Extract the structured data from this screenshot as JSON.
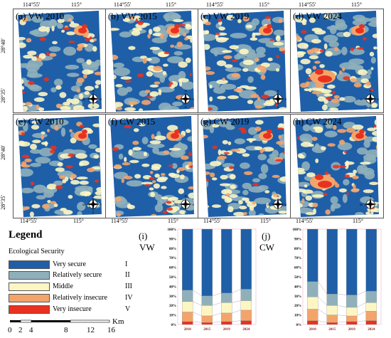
{
  "coords": {
    "top_left": "114°55'",
    "top_right": "115°",
    "bottom_left": "114°55'",
    "bottom_right": "115°",
    "lat_upper": "28°40'",
    "lat_lower": "28°35'"
  },
  "panels": [
    {
      "label": "(a) VW 2010"
    },
    {
      "label": "(b) VW 2015"
    },
    {
      "label": "(c) VW 2019"
    },
    {
      "label": "(d) VW 2024"
    },
    {
      "label": "(e) CW 2010"
    },
    {
      "label": "(f) CW 2015"
    },
    {
      "label": "(g) CW 2019"
    },
    {
      "label": "(h) CW 2024"
    }
  ],
  "legend": {
    "title": "Legend",
    "subtitle": "Ecological  Security",
    "items": [
      {
        "label": "Very secure",
        "roman": "I",
        "color": "#1f5fa8"
      },
      {
        "label": "Relatively secure",
        "roman": "II",
        "color": "#8fb0bb"
      },
      {
        "label": "Middle",
        "roman": "III",
        "color": "#fdf6c3"
      },
      {
        "label": "Relatively insecure",
        "roman": "IV",
        "color": "#f4a46a"
      },
      {
        "label": "Very insecure",
        "roman": "V",
        "color": "#e8321f"
      }
    ],
    "scale_unit": "Km",
    "scale_ticks": [
      "0",
      "2",
      "4",
      "8",
      "12",
      "16"
    ]
  },
  "compass": {
    "n": "N",
    "s": "S",
    "e": "E",
    "w": "W"
  },
  "chart_data": [
    {
      "type": "bar",
      "title": "(i)",
      "subtitle": "VW",
      "categories": [
        "2010",
        "2015",
        "2019",
        "2024"
      ],
      "y_ticks": [
        "0%",
        "10%",
        "20%",
        "30%",
        "40%",
        "50%",
        "60%",
        "70%",
        "80%",
        "90%",
        "100%"
      ],
      "ylim": [
        0,
        100
      ],
      "series": [
        {
          "name": "Very insecure",
          "values": [
            3,
            2,
            3,
            4
          ]
        },
        {
          "name": "Relatively insecure",
          "values": [
            10,
            7,
            9,
            11
          ]
        },
        {
          "name": "Middle",
          "values": [
            11,
            11,
            11,
            10
          ]
        },
        {
          "name": "Relatively secure",
          "values": [
            12,
            10,
            10,
            12
          ]
        },
        {
          "name": "Very secure",
          "values": [
            64,
            70,
            67,
            63
          ]
        }
      ]
    },
    {
      "type": "bar",
      "title": "(j)",
      "subtitle": "CW",
      "categories": [
        "2010",
        "2015",
        "2019",
        "2024"
      ],
      "y_ticks": [
        "0%",
        "10%",
        "20%",
        "30%",
        "40%",
        "50%",
        "60%",
        "70%",
        "80%",
        "90%",
        "100%"
      ],
      "ylim": [
        0,
        100
      ],
      "series": [
        {
          "name": "Very insecure",
          "values": [
            4,
            2,
            3,
            4
          ]
        },
        {
          "name": "Relatively insecure",
          "values": [
            12,
            8,
            6,
            10
          ]
        },
        {
          "name": "Middle",
          "values": [
            13,
            10,
            9,
            9
          ]
        },
        {
          "name": "Relatively secure",
          "values": [
            16,
            12,
            13,
            12
          ]
        },
        {
          "name": "Very secure",
          "values": [
            55,
            68,
            69,
            65
          ]
        }
      ]
    }
  ]
}
